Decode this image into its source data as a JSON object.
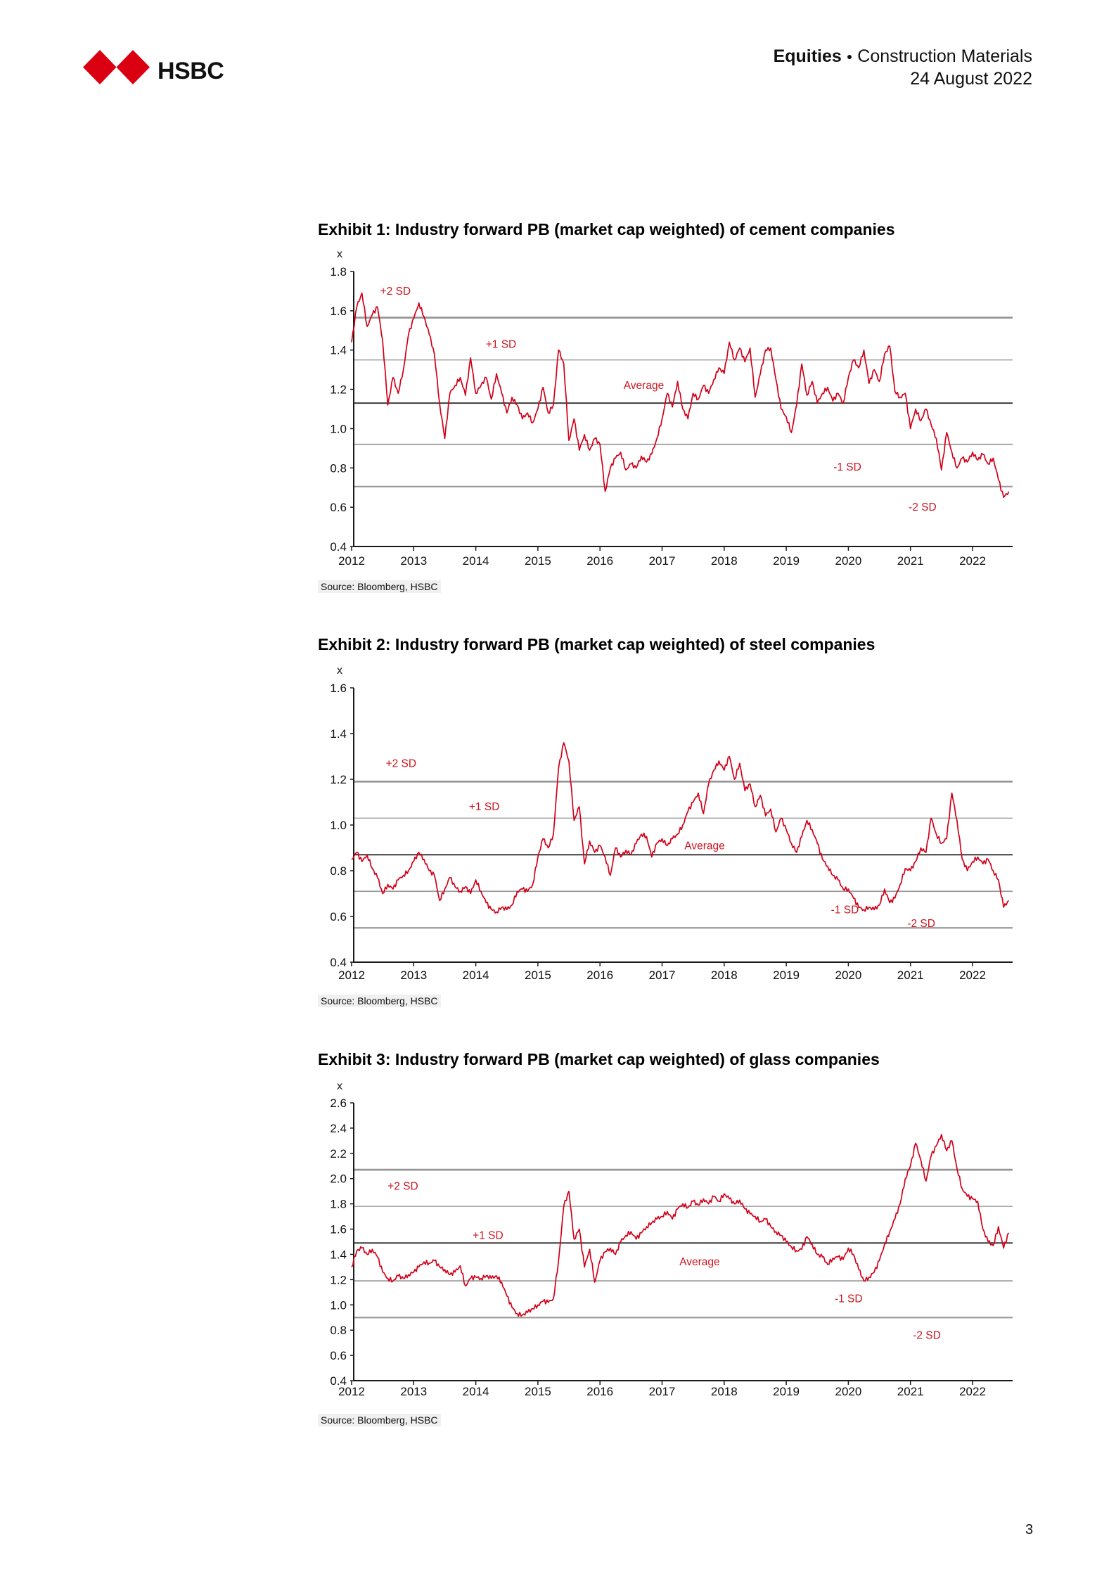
{
  "header": {
    "brand": "HSBC",
    "section": "Equities",
    "bullet": "●",
    "category": "Construction Materials",
    "date": "24 August 2022"
  },
  "page_number": "3",
  "brand_color": "#db0011",
  "line_color": "#d20019",
  "annotation_color": "#cc1420",
  "chart_data": [
    {
      "type": "line",
      "title": "Exhibit 1: Industry forward PB (market cap weighted) of cement companies",
      "source": "Source: Bloomberg, HSBC",
      "unit": "x",
      "series_name": "Industry forward PB (cement, market cap weighted)",
      "x_start_year": 2012,
      "points_per_year": 12,
      "y_axis": {
        "min": 0.4,
        "max": 1.8,
        "step": 0.2
      },
      "x_ticks": [
        2012,
        2013,
        2014,
        2015,
        2016,
        2017,
        2018,
        2019,
        2020,
        2021,
        2022
      ],
      "bands": [
        {
          "name": "plus2sd",
          "value": 1.565
        },
        {
          "name": "plus1sd",
          "value": 1.35
        },
        {
          "name": "average",
          "value": 1.13
        },
        {
          "name": "minus1sd",
          "value": 0.92
        },
        {
          "name": "minus2sd",
          "value": 0.705
        }
      ],
      "annotations": [
        {
          "text": "+2 SD",
          "year": 2012.46,
          "value": 1.7
        },
        {
          "text": "+1 SD",
          "year": 2014.16,
          "value": 1.43
        },
        {
          "text": "Average",
          "year": 2016.38,
          "value": 1.22
        },
        {
          "text": "-1 SD",
          "year": 2019.76,
          "value": 0.805
        },
        {
          "text": "-2 SD",
          "year": 2020.97,
          "value": 0.6
        }
      ],
      "values": [
        1.44,
        1.62,
        1.69,
        1.52,
        1.58,
        1.62,
        1.45,
        1.12,
        1.26,
        1.18,
        1.3,
        1.48,
        1.56,
        1.64,
        1.57,
        1.48,
        1.38,
        1.13,
        0.95,
        1.18,
        1.22,
        1.26,
        1.17,
        1.36,
        1.18,
        1.22,
        1.26,
        1.15,
        1.28,
        1.18,
        1.08,
        1.16,
        1.12,
        1.05,
        1.08,
        1.03,
        1.1,
        1.21,
        1.08,
        1.12,
        1.4,
        1.33,
        0.94,
        1.05,
        0.89,
        0.97,
        0.89,
        0.95,
        0.92,
        0.68,
        0.8,
        0.85,
        0.88,
        0.79,
        0.82,
        0.8,
        0.86,
        0.83,
        0.87,
        0.95,
        1.05,
        1.18,
        1.11,
        1.24,
        1.1,
        1.05,
        1.18,
        1.15,
        1.22,
        1.18,
        1.25,
        1.31,
        1.28,
        1.44,
        1.35,
        1.41,
        1.34,
        1.41,
        1.16,
        1.28,
        1.4,
        1.41,
        1.25,
        1.1,
        1.06,
        0.98,
        1.12,
        1.33,
        1.17,
        1.24,
        1.13,
        1.18,
        1.21,
        1.14,
        1.18,
        1.13,
        1.26,
        1.35,
        1.31,
        1.4,
        1.23,
        1.3,
        1.24,
        1.38,
        1.42,
        1.19,
        1.16,
        1.18,
        1.0,
        1.1,
        1.04,
        1.1,
        1.02,
        0.95,
        0.79,
        0.98,
        0.88,
        0.8,
        0.85,
        0.83,
        0.88,
        0.84,
        0.87,
        0.82,
        0.85,
        0.74,
        0.65,
        0.68
      ]
    },
    {
      "type": "line",
      "title": "Exhibit 2: Industry forward PB (market cap weighted) of steel companies",
      "source": "Source: Bloomberg, HSBC",
      "unit": "x",
      "series_name": "Industry forward PB (steel, market cap weighted)",
      "x_start_year": 2012,
      "points_per_year": 12,
      "y_axis": {
        "min": 0.4,
        "max": 1.6,
        "step": 0.2
      },
      "x_ticks": [
        2012,
        2013,
        2014,
        2015,
        2016,
        2017,
        2018,
        2019,
        2020,
        2021,
        2022
      ],
      "bands": [
        {
          "name": "plus2sd",
          "value": 1.19
        },
        {
          "name": "plus1sd",
          "value": 1.03
        },
        {
          "name": "average",
          "value": 0.87
        },
        {
          "name": "minus1sd",
          "value": 0.71
        },
        {
          "name": "minus2sd",
          "value": 0.55
        }
      ],
      "annotations": [
        {
          "text": "+2 SD",
          "year": 2012.55,
          "value": 1.27
        },
        {
          "text": "+1 SD",
          "year": 2013.89,
          "value": 1.08
        },
        {
          "text": "Average",
          "year": 2017.36,
          "value": 0.91
        },
        {
          "text": "-1 SD",
          "year": 2019.72,
          "value": 0.63
        },
        {
          "text": "-2 SD",
          "year": 2020.95,
          "value": 0.57
        }
      ],
      "values": [
        0.85,
        0.88,
        0.84,
        0.87,
        0.81,
        0.77,
        0.7,
        0.74,
        0.72,
        0.76,
        0.78,
        0.8,
        0.84,
        0.88,
        0.85,
        0.8,
        0.78,
        0.67,
        0.72,
        0.77,
        0.73,
        0.71,
        0.73,
        0.7,
        0.76,
        0.71,
        0.66,
        0.63,
        0.62,
        0.64,
        0.63,
        0.65,
        0.71,
        0.72,
        0.71,
        0.74,
        0.86,
        0.94,
        0.9,
        0.96,
        1.25,
        1.36,
        1.28,
        1.02,
        1.08,
        0.83,
        0.93,
        0.88,
        0.91,
        0.86,
        0.78,
        0.9,
        0.86,
        0.89,
        0.87,
        0.92,
        0.96,
        0.95,
        0.86,
        0.92,
        0.94,
        0.91,
        0.94,
        0.96,
        1.0,
        1.06,
        1.1,
        1.14,
        1.05,
        1.18,
        1.24,
        1.28,
        1.24,
        1.3,
        1.2,
        1.27,
        1.15,
        1.18,
        1.08,
        1.13,
        1.04,
        1.07,
        0.97,
        1.03,
        0.98,
        0.92,
        0.88,
        0.95,
        1.02,
        0.98,
        0.92,
        0.85,
        0.82,
        0.78,
        0.76,
        0.72,
        0.72,
        0.68,
        0.64,
        0.63,
        0.64,
        0.63,
        0.65,
        0.72,
        0.66,
        0.68,
        0.74,
        0.81,
        0.8,
        0.84,
        0.9,
        0.88,
        1.03,
        0.96,
        0.92,
        0.94,
        1.14,
        1.02,
        0.85,
        0.8,
        0.84,
        0.86,
        0.83,
        0.85,
        0.8,
        0.76,
        0.64,
        0.67
      ]
    },
    {
      "type": "line",
      "title": "Exhibit 3: Industry forward PB (market cap weighted) of glass companies",
      "source": "Source: Bloomberg, HSBC",
      "unit": "x",
      "series_name": "Industry forward PB (glass, market cap weighted)",
      "x_start_year": 2012,
      "points_per_year": 12,
      "y_axis": {
        "min": 0.4,
        "max": 2.6,
        "step": 0.2
      },
      "x_ticks": [
        2012,
        2013,
        2014,
        2015,
        2016,
        2017,
        2018,
        2019,
        2020,
        2021,
        2022
      ],
      "bands": [
        {
          "name": "plus2sd",
          "value": 2.07
        },
        {
          "name": "plus1sd",
          "value": 1.78
        },
        {
          "name": "average",
          "value": 1.49
        },
        {
          "name": "minus1sd",
          "value": 1.19
        },
        {
          "name": "minus2sd",
          "value": 0.9
        }
      ],
      "annotations": [
        {
          "text": "+2 SD",
          "year": 2012.58,
          "value": 1.94
        },
        {
          "text": "+1 SD",
          "year": 2013.95,
          "value": 1.55
        },
        {
          "text": "Average",
          "year": 2017.28,
          "value": 1.34
        },
        {
          "text": "-1 SD",
          "year": 2019.78,
          "value": 1.05
        },
        {
          "text": "-2 SD",
          "year": 2021.04,
          "value": 0.76
        }
      ],
      "values": [
        1.3,
        1.43,
        1.45,
        1.4,
        1.44,
        1.38,
        1.26,
        1.21,
        1.19,
        1.23,
        1.21,
        1.24,
        1.26,
        1.3,
        1.34,
        1.33,
        1.35,
        1.3,
        1.28,
        1.24,
        1.26,
        1.31,
        1.15,
        1.21,
        1.22,
        1.21,
        1.23,
        1.21,
        1.23,
        1.18,
        1.07,
        0.98,
        0.93,
        0.92,
        0.94,
        0.97,
        1.0,
        1.03,
        1.02,
        1.05,
        1.35,
        1.78,
        1.9,
        1.52,
        1.6,
        1.3,
        1.44,
        1.18,
        1.35,
        1.42,
        1.45,
        1.4,
        1.5,
        1.55,
        1.58,
        1.52,
        1.57,
        1.62,
        1.65,
        1.68,
        1.7,
        1.74,
        1.68,
        1.76,
        1.8,
        1.77,
        1.82,
        1.79,
        1.84,
        1.8,
        1.86,
        1.82,
        1.88,
        1.84,
        1.8,
        1.83,
        1.76,
        1.72,
        1.7,
        1.66,
        1.68,
        1.62,
        1.58,
        1.55,
        1.5,
        1.46,
        1.43,
        1.44,
        1.54,
        1.48,
        1.4,
        1.38,
        1.32,
        1.37,
        1.38,
        1.36,
        1.45,
        1.4,
        1.28,
        1.19,
        1.22,
        1.26,
        1.35,
        1.48,
        1.58,
        1.68,
        1.8,
        2.0,
        2.1,
        2.28,
        2.15,
        1.98,
        2.18,
        2.26,
        2.35,
        2.22,
        2.3,
        2.08,
        1.92,
        1.86,
        1.84,
        1.82,
        1.6,
        1.5,
        1.47,
        1.62,
        1.45,
        1.57
      ]
    }
  ]
}
